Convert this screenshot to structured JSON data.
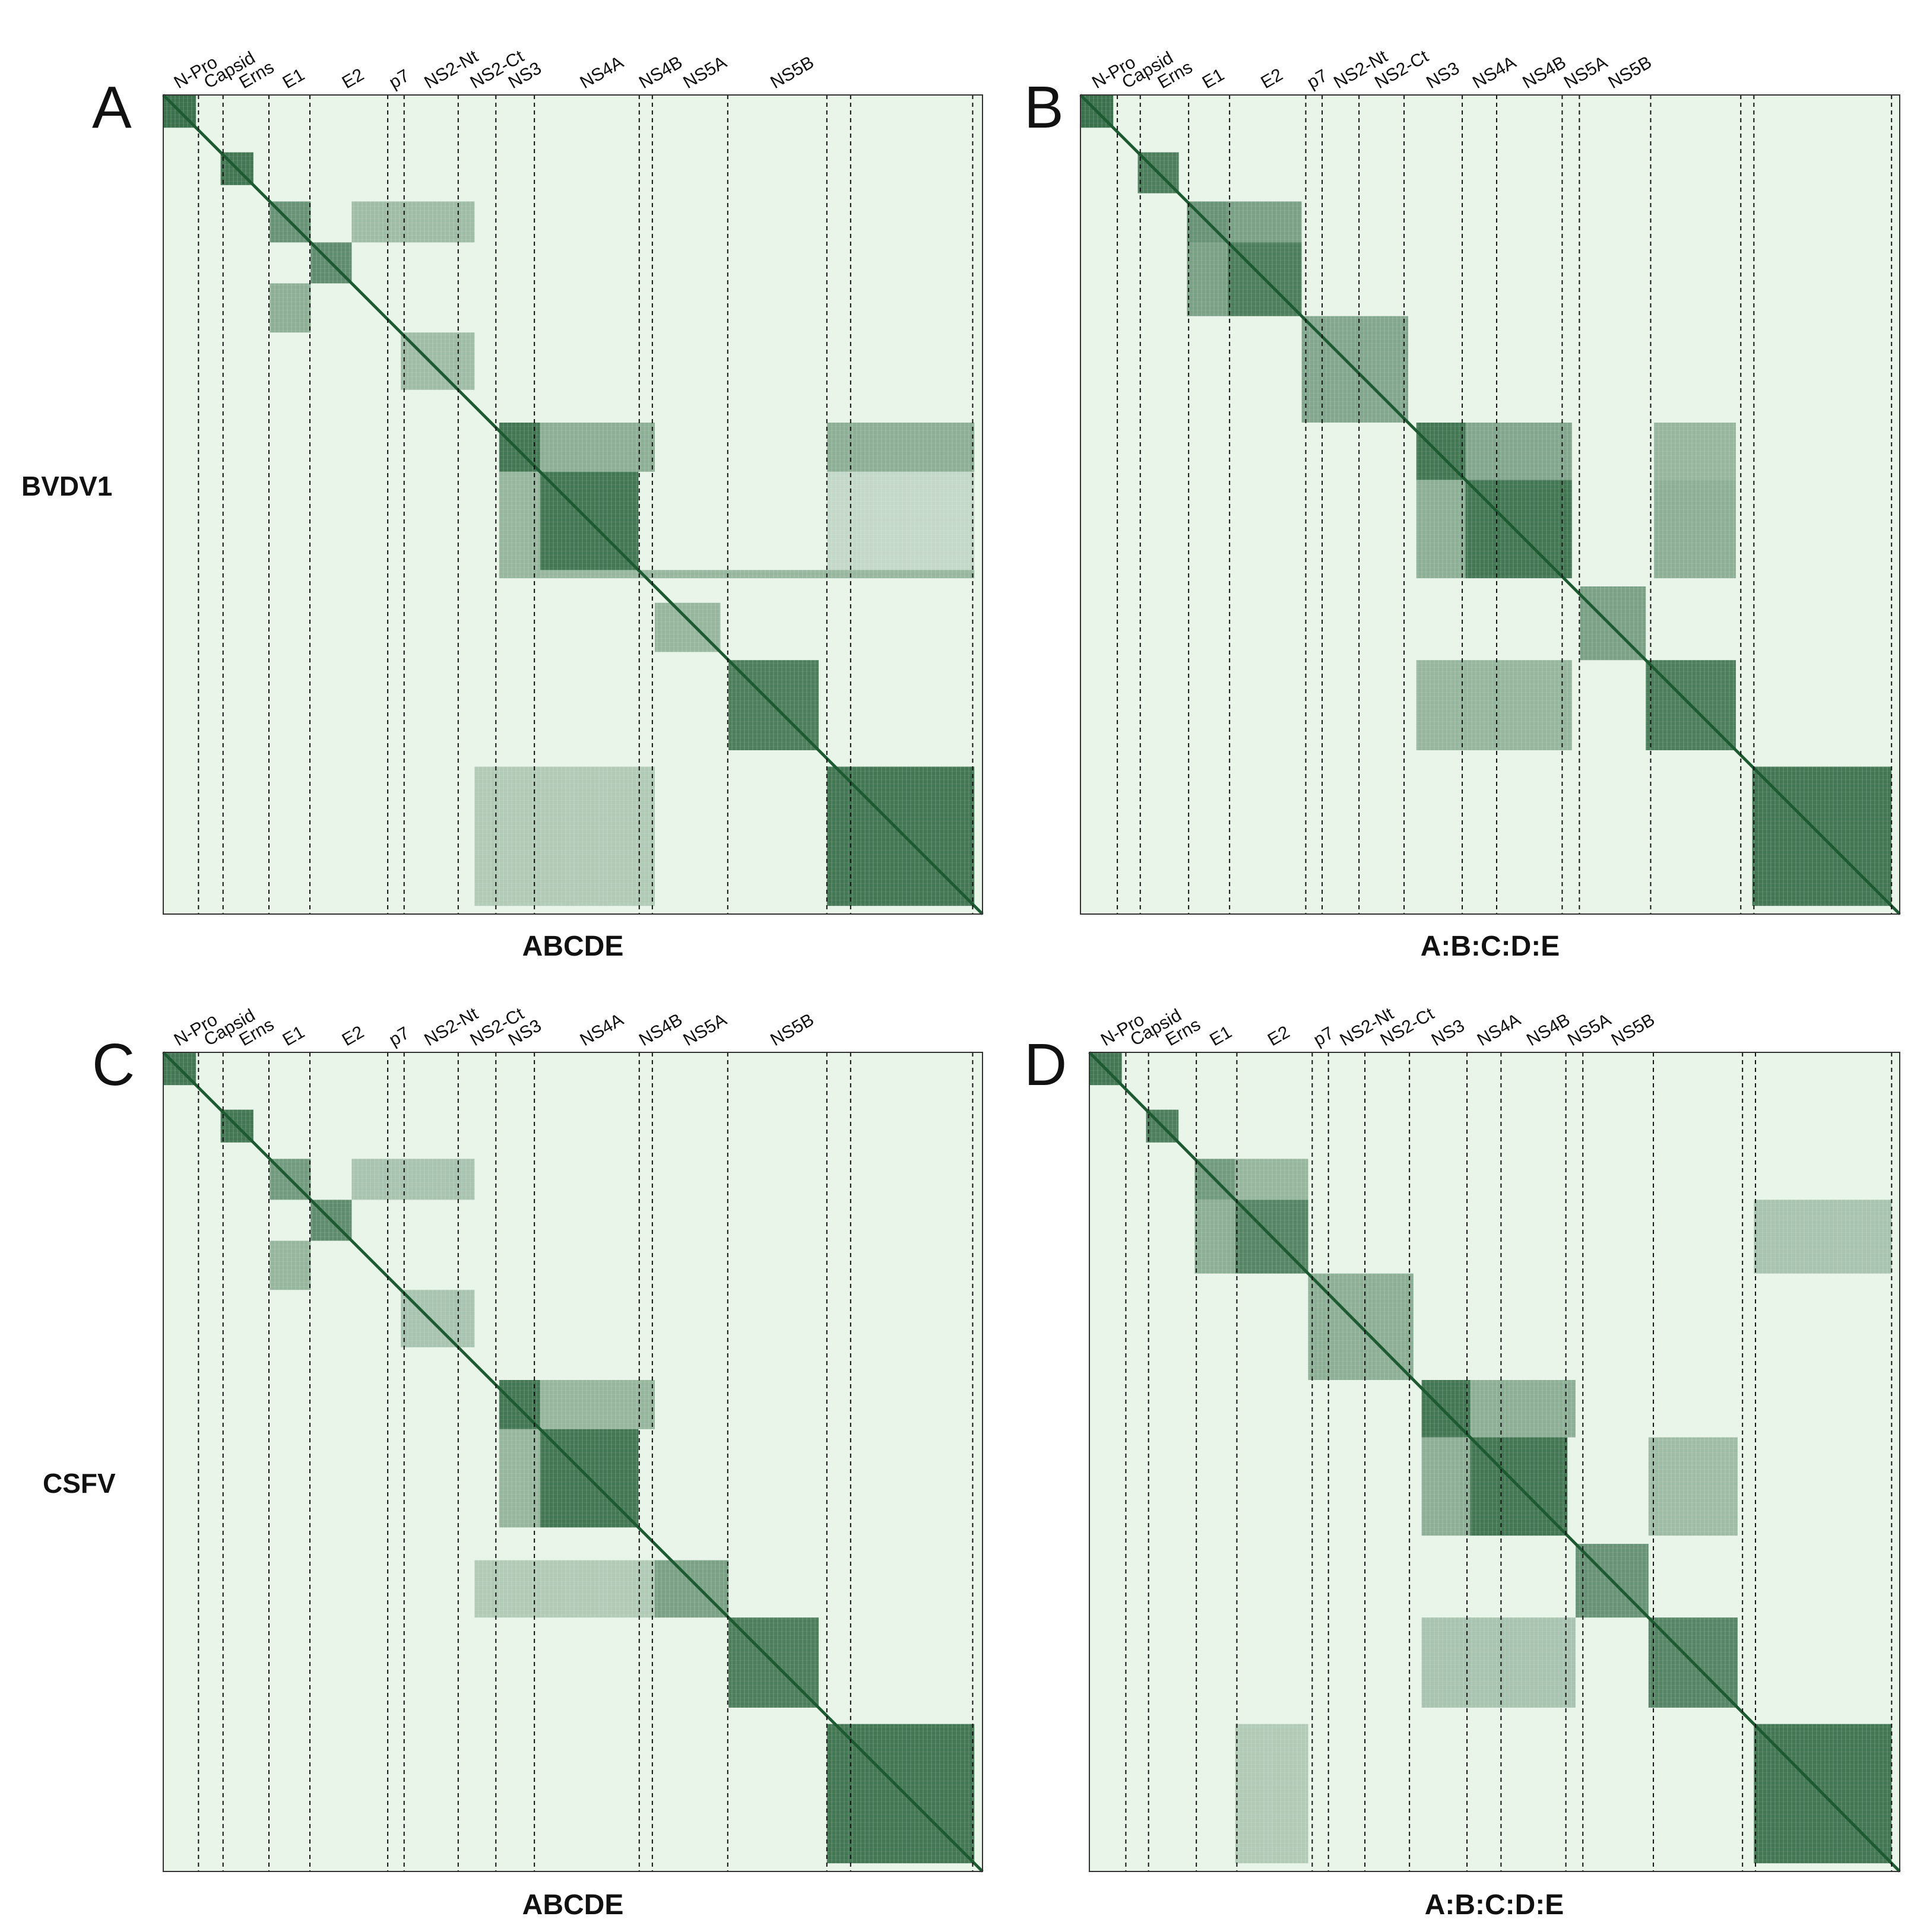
{
  "colors": {
    "background": "#eaf5ea",
    "low": "#e8f4e8",
    "high": "#1d5a32",
    "frame": "#333333"
  },
  "proteins": [
    "N-Pro",
    "Capsid",
    "Erns",
    "E1",
    "E2",
    "p7",
    "NS2-Nt",
    "NS2-Ct",
    "NS3",
    "NS4A",
    "NS4B",
    "NS5A",
    "NS5B"
  ],
  "chart_data": [
    {
      "type": "heatmap",
      "panel": "A",
      "row_label": "BVDV1",
      "xlabel": "ABCDE",
      "tick_labels": [
        "N-Pro",
        "Capsid",
        "Erns",
        "E1",
        "E2",
        "p7",
        "NS2-Nt",
        "NS2-Ct",
        "NS3",
        "NS4A",
        "NS4B",
        "NS5A",
        "NS5B"
      ],
      "boundaries": [
        0,
        0.043,
        0.073,
        0.129,
        0.179,
        0.274,
        0.294,
        0.36,
        0.406,
        0.453,
        0.581,
        0.597,
        0.689,
        0.81,
        0.839,
        0.988,
        1.0
      ],
      "blocks": [
        {
          "r": [
            0,
            0.04
          ],
          "c": [
            0,
            0.04
          ],
          "v": 0.95
        },
        {
          "r": [
            0.07,
            0.11
          ],
          "c": [
            0.07,
            0.11
          ],
          "v": 0.9
        },
        {
          "r": [
            0.13,
            0.18
          ],
          "c": [
            0.13,
            0.18
          ],
          "v": 0.7
        },
        {
          "r": [
            0.13,
            0.18
          ],
          "c": [
            0.23,
            0.38
          ],
          "v": 0.4
        },
        {
          "r": [
            0.18,
            0.23
          ],
          "c": [
            0.18,
            0.23
          ],
          "v": 0.75
        },
        {
          "r": [
            0.23,
            0.29
          ],
          "c": [
            0.13,
            0.18
          ],
          "v": 0.5
        },
        {
          "r": [
            0.29,
            0.36
          ],
          "c": [
            0.29,
            0.38
          ],
          "v": 0.4
        },
        {
          "r": [
            0.4,
            0.46
          ],
          "c": [
            0.41,
            0.46
          ],
          "v": 0.9
        },
        {
          "r": [
            0.4,
            0.46
          ],
          "c": [
            0.46,
            0.6
          ],
          "v": 0.5
        },
        {
          "r": [
            0.4,
            0.46
          ],
          "c": [
            0.81,
            0.99
          ],
          "v": 0.5
        },
        {
          "r": [
            0.46,
            0.58
          ],
          "c": [
            0.41,
            0.46
          ],
          "v": 0.45
        },
        {
          "r": [
            0.46,
            0.58
          ],
          "c": [
            0.46,
            0.58
          ],
          "v": 0.9
        },
        {
          "r": [
            0.46,
            0.58
          ],
          "c": [
            0.81,
            0.99
          ],
          "v": 0.2
        },
        {
          "r": [
            0.58,
            0.59
          ],
          "c": [
            0.41,
            0.99
          ],
          "v": 0.45
        },
        {
          "r": [
            0.62,
            0.68
          ],
          "c": [
            0.6,
            0.68
          ],
          "v": 0.45
        },
        {
          "r": [
            0.69,
            0.8
          ],
          "c": [
            0.69,
            0.8
          ],
          "v": 0.85
        },
        {
          "r": [
            0.82,
            0.99
          ],
          "c": [
            0.81,
            0.99
          ],
          "v": 0.9
        },
        {
          "r": [
            0.82,
            0.99
          ],
          "c": [
            0.38,
            0.6
          ],
          "v": 0.3
        }
      ]
    },
    {
      "type": "heatmap",
      "panel": "B",
      "row_label": "",
      "xlabel": "A:B:C:D:E",
      "tick_labels": [
        "N-Pro",
        "Capsid",
        "Erns",
        "E1",
        "E2",
        "p7",
        "NS2-Nt",
        "NS2-Ct",
        "NS3",
        "NS4A",
        "NS4B",
        "NS5A",
        "NS5B"
      ],
      "boundaries": [
        0,
        0.045,
        0.073,
        0.132,
        0.182,
        0.275,
        0.295,
        0.34,
        0.395,
        0.466,
        0.508,
        0.588,
        0.609,
        0.696,
        0.806,
        0.822,
        0.99,
        1.0
      ],
      "blocks": [
        {
          "r": [
            0,
            0.04
          ],
          "c": [
            0,
            0.04
          ],
          "v": 0.95
        },
        {
          "r": [
            0.07,
            0.12
          ],
          "c": [
            0.07,
            0.12
          ],
          "v": 0.85
        },
        {
          "r": [
            0.13,
            0.18
          ],
          "c": [
            0.13,
            0.18
          ],
          "v": 0.7
        },
        {
          "r": [
            0.13,
            0.18
          ],
          "c": [
            0.18,
            0.27
          ],
          "v": 0.6
        },
        {
          "r": [
            0.18,
            0.27
          ],
          "c": [
            0.13,
            0.18
          ],
          "v": 0.6
        },
        {
          "r": [
            0.18,
            0.27
          ],
          "c": [
            0.18,
            0.27
          ],
          "v": 0.85
        },
        {
          "r": [
            0.27,
            0.4
          ],
          "c": [
            0.27,
            0.4
          ],
          "v": 0.55
        },
        {
          "r": [
            0.4,
            0.47
          ],
          "c": [
            0.41,
            0.47
          ],
          "v": 0.9
        },
        {
          "r": [
            0.4,
            0.47
          ],
          "c": [
            0.47,
            0.6
          ],
          "v": 0.55
        },
        {
          "r": [
            0.4,
            0.47
          ],
          "c": [
            0.7,
            0.8
          ],
          "v": 0.45
        },
        {
          "r": [
            0.47,
            0.59
          ],
          "c": [
            0.41,
            0.47
          ],
          "v": 0.5
        },
        {
          "r": [
            0.47,
            0.59
          ],
          "c": [
            0.47,
            0.6
          ],
          "v": 0.9
        },
        {
          "r": [
            0.47,
            0.59
          ],
          "c": [
            0.7,
            0.8
          ],
          "v": 0.5
        },
        {
          "r": [
            0.6,
            0.69
          ],
          "c": [
            0.61,
            0.69
          ],
          "v": 0.6
        },
        {
          "r": [
            0.69,
            0.8
          ],
          "c": [
            0.41,
            0.6
          ],
          "v": 0.45
        },
        {
          "r": [
            0.69,
            0.8
          ],
          "c": [
            0.69,
            0.8
          ],
          "v": 0.85
        },
        {
          "r": [
            0.82,
            0.99
          ],
          "c": [
            0.82,
            0.99
          ],
          "v": 0.9
        }
      ]
    },
    {
      "type": "heatmap",
      "panel": "C",
      "row_label": "CSFV",
      "xlabel": "ABCDE",
      "tick_labels": [
        "N-Pro",
        "Capsid",
        "Erns",
        "E1",
        "E2",
        "p7",
        "NS2-Nt",
        "NS2-Ct",
        "NS3",
        "NS4A",
        "NS4B",
        "NS5A",
        "NS5B"
      ],
      "boundaries": [
        0,
        0.043,
        0.073,
        0.129,
        0.179,
        0.274,
        0.294,
        0.36,
        0.406,
        0.453,
        0.581,
        0.597,
        0.689,
        0.81,
        0.839,
        0.988,
        1.0
      ],
      "blocks": [
        {
          "r": [
            0,
            0.04
          ],
          "c": [
            0,
            0.04
          ],
          "v": 0.9
        },
        {
          "r": [
            0.07,
            0.11
          ],
          "c": [
            0.07,
            0.11
          ],
          "v": 0.9
        },
        {
          "r": [
            0.13,
            0.18
          ],
          "c": [
            0.13,
            0.18
          ],
          "v": 0.65
        },
        {
          "r": [
            0.13,
            0.18
          ],
          "c": [
            0.23,
            0.38
          ],
          "v": 0.35
        },
        {
          "r": [
            0.18,
            0.23
          ],
          "c": [
            0.18,
            0.23
          ],
          "v": 0.75
        },
        {
          "r": [
            0.23,
            0.29
          ],
          "c": [
            0.13,
            0.18
          ],
          "v": 0.45
        },
        {
          "r": [
            0.29,
            0.36
          ],
          "c": [
            0.29,
            0.38
          ],
          "v": 0.35
        },
        {
          "r": [
            0.4,
            0.46
          ],
          "c": [
            0.41,
            0.46
          ],
          "v": 0.9
        },
        {
          "r": [
            0.4,
            0.46
          ],
          "c": [
            0.46,
            0.6
          ],
          "v": 0.45
        },
        {
          "r": [
            0.46,
            0.58
          ],
          "c": [
            0.41,
            0.46
          ],
          "v": 0.45
        },
        {
          "r": [
            0.46,
            0.58
          ],
          "c": [
            0.46,
            0.58
          ],
          "v": 0.9
        },
        {
          "r": [
            0.62,
            0.69
          ],
          "c": [
            0.38,
            0.6
          ],
          "v": 0.3
        },
        {
          "r": [
            0.62,
            0.69
          ],
          "c": [
            0.6,
            0.69
          ],
          "v": 0.6
        },
        {
          "r": [
            0.69,
            0.8
          ],
          "c": [
            0.69,
            0.8
          ],
          "v": 0.85
        },
        {
          "r": [
            0.82,
            0.99
          ],
          "c": [
            0.81,
            0.99
          ],
          "v": 0.9
        }
      ]
    },
    {
      "type": "heatmap",
      "panel": "D",
      "row_label": "",
      "xlabel": "A:B:C:D:E",
      "tick_labels": [
        "N-Pro",
        "Capsid",
        "Erns",
        "E1",
        "E2",
        "p7",
        "NS2-Nt",
        "NS2-Ct",
        "NS3",
        "NS4A",
        "NS4B",
        "NS5A",
        "NS5B"
      ],
      "boundaries": [
        0,
        0.045,
        0.073,
        0.132,
        0.182,
        0.275,
        0.295,
        0.34,
        0.395,
        0.466,
        0.508,
        0.588,
        0.609,
        0.696,
        0.806,
        0.822,
        0.99,
        1.0
      ],
      "blocks": [
        {
          "r": [
            0,
            0.04
          ],
          "c": [
            0,
            0.04
          ],
          "v": 0.9
        },
        {
          "r": [
            0.07,
            0.11
          ],
          "c": [
            0.07,
            0.11
          ],
          "v": 0.85
        },
        {
          "r": [
            0.13,
            0.18
          ],
          "c": [
            0.13,
            0.18
          ],
          "v": 0.65
        },
        {
          "r": [
            0.13,
            0.18
          ],
          "c": [
            0.18,
            0.27
          ],
          "v": 0.45
        },
        {
          "r": [
            0.18,
            0.27
          ],
          "c": [
            0.13,
            0.18
          ],
          "v": 0.5
        },
        {
          "r": [
            0.18,
            0.27
          ],
          "c": [
            0.18,
            0.27
          ],
          "v": 0.8
        },
        {
          "r": [
            0.18,
            0.27
          ],
          "c": [
            0.82,
            0.99
          ],
          "v": 0.35
        },
        {
          "r": [
            0.27,
            0.4
          ],
          "c": [
            0.27,
            0.4
          ],
          "v": 0.5
        },
        {
          "r": [
            0.4,
            0.47
          ],
          "c": [
            0.41,
            0.47
          ],
          "v": 0.9
        },
        {
          "r": [
            0.4,
            0.47
          ],
          "c": [
            0.47,
            0.6
          ],
          "v": 0.5
        },
        {
          "r": [
            0.47,
            0.59
          ],
          "c": [
            0.41,
            0.47
          ],
          "v": 0.5
        },
        {
          "r": [
            0.47,
            0.59
          ],
          "c": [
            0.47,
            0.59
          ],
          "v": 0.9
        },
        {
          "r": [
            0.47,
            0.59
          ],
          "c": [
            0.69,
            0.8
          ],
          "v": 0.4
        },
        {
          "r": [
            0.6,
            0.69
          ],
          "c": [
            0.6,
            0.69
          ],
          "v": 0.7
        },
        {
          "r": [
            0.69,
            0.8
          ],
          "c": [
            0.41,
            0.6
          ],
          "v": 0.35
        },
        {
          "r": [
            0.69,
            0.8
          ],
          "c": [
            0.69,
            0.8
          ],
          "v": 0.8
        },
        {
          "r": [
            0.82,
            0.99
          ],
          "c": [
            0.18,
            0.27
          ],
          "v": 0.3
        },
        {
          "r": [
            0.82,
            0.99
          ],
          "c": [
            0.82,
            0.99
          ],
          "v": 0.9
        }
      ]
    }
  ]
}
